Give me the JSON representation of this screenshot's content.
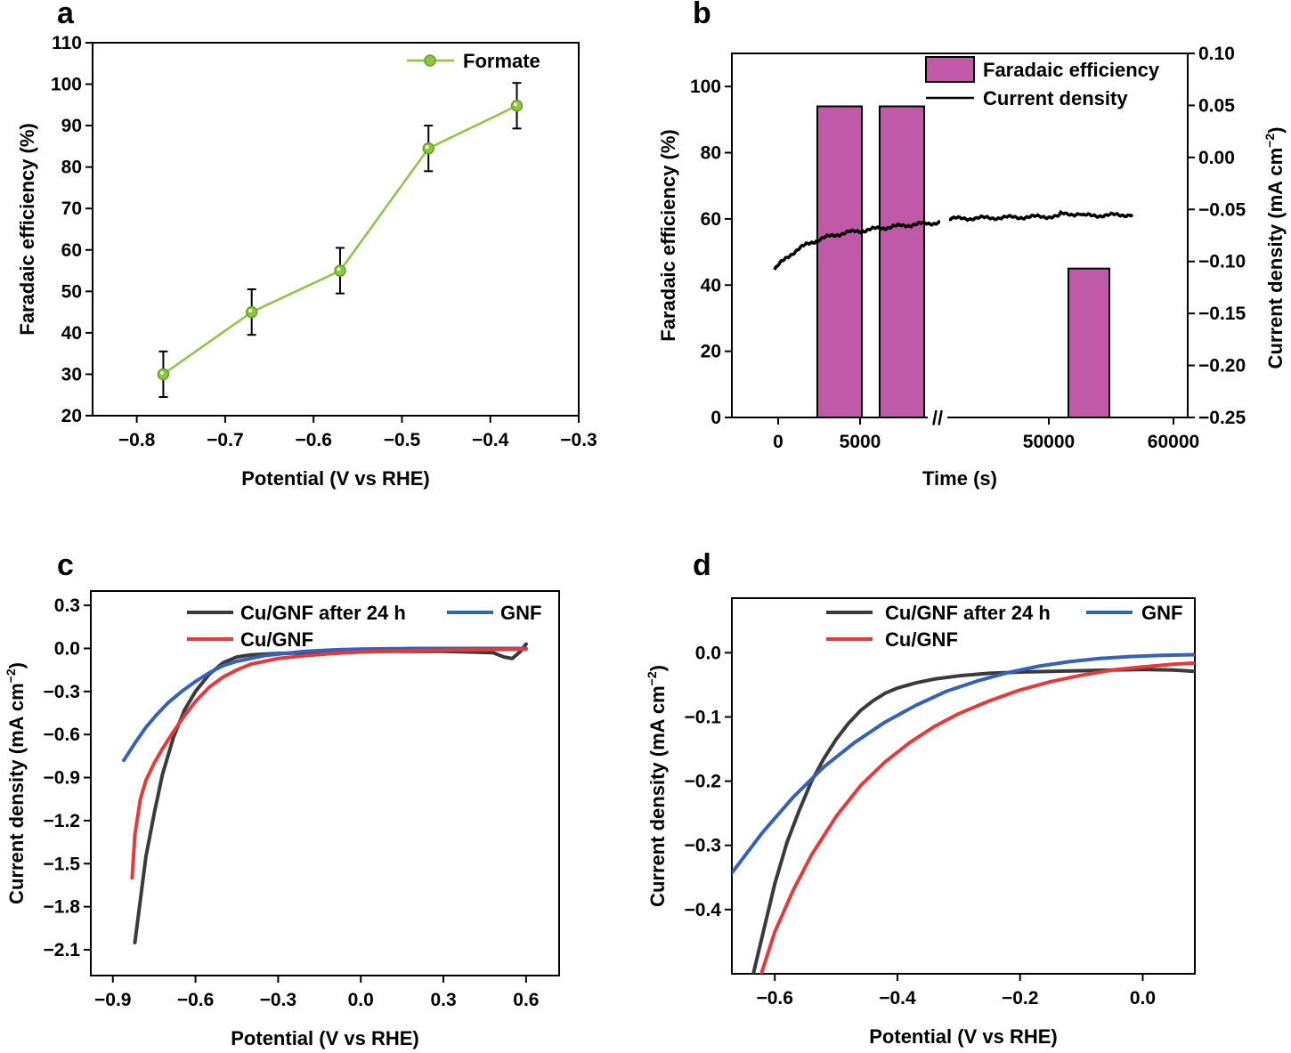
{
  "chart_data": [
    {
      "panel": "a",
      "type": "line",
      "xlabel": "Potential (V vs RHE)",
      "ylabel": "Faradaic efficiency (%)",
      "xlim": [
        -0.85,
        -0.3
      ],
      "ylim": [
        20,
        110
      ],
      "xticks": [
        -0.8,
        -0.7,
        -0.6,
        -0.5,
        -0.4,
        -0.3
      ],
      "xtick_labels": [
        "−0.8",
        "−0.7",
        "−0.6",
        "−0.5",
        "−0.4",
        "−0.3"
      ],
      "yticks": [
        20,
        30,
        40,
        50,
        60,
        70,
        80,
        90,
        100,
        110
      ],
      "ytick_labels": [
        "20",
        "30",
        "40",
        "50",
        "60",
        "70",
        "80",
        "90",
        "100",
        "110"
      ],
      "series": [
        {
          "name": "Formate",
          "color": "#8cc63f",
          "x": [
            -0.77,
            -0.67,
            -0.57,
            -0.47,
            -0.37
          ],
          "y": [
            30,
            45,
            55,
            84.5,
            94.8
          ],
          "err": [
            5.5,
            5.5,
            5.5,
            5.5,
            5.5
          ]
        }
      ],
      "legend": "top-right"
    },
    {
      "panel": "b",
      "type": "bar",
      "xlabel": "Time (s)",
      "ylabel": "Faradaic efficiency (%)",
      "ylabel_right": "Current density (mA cm",
      "ylabel_right_sup": "−2",
      "ylabel_right_close": ")",
      "ylim": [
        0,
        110
      ],
      "ylim_right": [
        -0.25,
        0.1
      ],
      "xtick_labels": [
        "0",
        "5000",
        "50000",
        "60000"
      ],
      "yticks": [
        0,
        20,
        40,
        60,
        80,
        100
      ],
      "ytick_labels": [
        "0",
        "20",
        "40",
        "60",
        "80",
        "100"
      ],
      "yticks_right": [
        -0.25,
        -0.2,
        -0.15,
        -0.1,
        -0.05,
        0.0,
        0.05,
        0.1
      ],
      "ytick_labels_right": [
        "−0.25",
        "−0.20",
        "−0.15",
        "−0.10",
        "−0.05",
        "0.00",
        "0.05",
        "0.10"
      ],
      "axis_break_mark": "//",
      "bars": {
        "name": "Faradaic efficiency",
        "color": "#c05aa8",
        "values": [
          94,
          94,
          45
        ]
      },
      "line": {
        "name": "Current density",
        "color": "#000000",
        "start": -0.108,
        "end": -0.055,
        "unit": "mA cm−2"
      },
      "legend": "top-right"
    },
    {
      "panel": "c",
      "type": "line",
      "xlabel": "Potential (V vs RHE)",
      "ylabel": "Current density (mA cm",
      "ylabel_sup": "−2",
      "ylabel_close": ")",
      "xlim": [
        -0.98,
        0.72
      ],
      "ylim": [
        -2.28,
        0.4
      ],
      "xticks": [
        -0.9,
        -0.6,
        -0.3,
        0.0,
        0.3,
        0.6
      ],
      "xtick_labels": [
        "−0.9",
        "−0.6",
        "−0.3",
        "0.0",
        "0.3",
        "0.6"
      ],
      "yticks": [
        -2.1,
        -1.8,
        -1.5,
        -1.2,
        -0.9,
        -0.6,
        -0.3,
        0.0,
        0.3
      ],
      "ytick_labels": [
        "−2.1",
        "−1.8",
        "−1.5",
        "−1.2",
        "−0.9",
        "−0.6",
        "−0.3",
        "0.0",
        "0.3"
      ],
      "series": [
        {
          "name": "Cu/GNF after 24 h",
          "color": "#3a3a3a",
          "x": [
            -0.82,
            -0.8,
            -0.78,
            -0.75,
            -0.72,
            -0.68,
            -0.64,
            -0.6,
            -0.55,
            -0.5,
            -0.45,
            -0.4,
            -0.35,
            -0.3,
            -0.2,
            -0.1,
            0.0,
            0.1,
            0.2,
            0.3,
            0.4,
            0.48,
            0.52,
            0.55,
            0.58,
            0.6
          ],
          "y": [
            -2.05,
            -1.75,
            -1.45,
            -1.15,
            -0.88,
            -0.62,
            -0.43,
            -0.3,
            -0.18,
            -0.1,
            -0.06,
            -0.045,
            -0.04,
            -0.035,
            -0.03,
            -0.025,
            -0.025,
            -0.02,
            -0.02,
            -0.02,
            -0.025,
            -0.03,
            -0.06,
            -0.07,
            -0.02,
            0.03
          ]
        },
        {
          "name": "GNF",
          "color": "#3561b8",
          "x": [
            -0.86,
            -0.82,
            -0.78,
            -0.74,
            -0.7,
            -0.65,
            -0.6,
            -0.55,
            -0.5,
            -0.45,
            -0.4,
            -0.35,
            -0.3,
            -0.2,
            -0.1,
            0.0,
            0.2,
            0.4,
            0.6
          ],
          "y": [
            -0.78,
            -0.66,
            -0.55,
            -0.46,
            -0.38,
            -0.3,
            -0.23,
            -0.17,
            -0.12,
            -0.09,
            -0.07,
            -0.05,
            -0.04,
            -0.02,
            -0.01,
            -0.005,
            0.0,
            0.0,
            0.0
          ]
        },
        {
          "name": "Cu/GNF",
          "color": "#e5393a",
          "x": [
            -0.83,
            -0.82,
            -0.8,
            -0.78,
            -0.75,
            -0.72,
            -0.68,
            -0.64,
            -0.6,
            -0.55,
            -0.5,
            -0.45,
            -0.4,
            -0.3,
            -0.2,
            -0.1,
            0.0,
            0.2,
            0.4,
            0.6
          ],
          "y": [
            -1.6,
            -1.3,
            -1.05,
            -0.92,
            -0.8,
            -0.7,
            -0.58,
            -0.47,
            -0.37,
            -0.27,
            -0.2,
            -0.15,
            -0.11,
            -0.07,
            -0.05,
            -0.035,
            -0.025,
            -0.015,
            -0.01,
            -0.005
          ]
        }
      ],
      "legend": "top"
    },
    {
      "panel": "d",
      "type": "line",
      "xlabel": "Potential (V vs RHE)",
      "ylabel": "Current density (mA cm",
      "ylabel_sup": "−2",
      "ylabel_close": ")",
      "xlim": [
        -0.67,
        0.085
      ],
      "ylim": [
        -0.5,
        0.085
      ],
      "xticks": [
        -0.6,
        -0.4,
        -0.2,
        0.0
      ],
      "xtick_labels": [
        "−0.6",
        "−0.4",
        "−0.2",
        "0.0"
      ],
      "yticks": [
        -0.4,
        -0.3,
        -0.2,
        -0.1,
        0.0
      ],
      "ytick_labels": [
        "−0.4",
        "−0.3",
        "−0.2",
        "−0.1",
        "0.0"
      ],
      "series": [
        {
          "name": "Cu/GNF after 24 h",
          "color": "#3a3a3a",
          "x": [
            -0.635,
            -0.62,
            -0.6,
            -0.58,
            -0.56,
            -0.54,
            -0.52,
            -0.5,
            -0.48,
            -0.46,
            -0.44,
            -0.42,
            -0.4,
            -0.37,
            -0.34,
            -0.3,
            -0.25,
            -0.2,
            -0.15,
            -0.1,
            -0.05,
            0.0,
            0.05,
            0.085
          ],
          "y": [
            -0.5,
            -0.44,
            -0.36,
            -0.295,
            -0.245,
            -0.2,
            -0.165,
            -0.135,
            -0.11,
            -0.09,
            -0.075,
            -0.063,
            -0.055,
            -0.047,
            -0.041,
            -0.036,
            -0.032,
            -0.03,
            -0.029,
            -0.028,
            -0.027,
            -0.026,
            -0.027,
            -0.029
          ]
        },
        {
          "name": "GNF",
          "color": "#3561b8",
          "x": [
            -0.67,
            -0.62,
            -0.57,
            -0.52,
            -0.47,
            -0.42,
            -0.37,
            -0.32,
            -0.27,
            -0.22,
            -0.17,
            -0.12,
            -0.07,
            -0.02,
            0.03,
            0.085
          ],
          "y": [
            -0.343,
            -0.28,
            -0.225,
            -0.178,
            -0.14,
            -0.108,
            -0.082,
            -0.06,
            -0.044,
            -0.031,
            -0.021,
            -0.014,
            -0.009,
            -0.006,
            -0.004,
            -0.003
          ]
        },
        {
          "name": "Cu/GNF",
          "color": "#e5393a",
          "x": [
            -0.622,
            -0.6,
            -0.57,
            -0.54,
            -0.5,
            -0.46,
            -0.42,
            -0.38,
            -0.34,
            -0.3,
            -0.25,
            -0.2,
            -0.15,
            -0.1,
            -0.05,
            0.0,
            0.05,
            0.085
          ],
          "y": [
            -0.5,
            -0.435,
            -0.37,
            -0.315,
            -0.255,
            -0.207,
            -0.17,
            -0.14,
            -0.115,
            -0.095,
            -0.075,
            -0.058,
            -0.045,
            -0.035,
            -0.027,
            -0.022,
            -0.018,
            -0.016
          ]
        }
      ],
      "legend": "top"
    }
  ]
}
